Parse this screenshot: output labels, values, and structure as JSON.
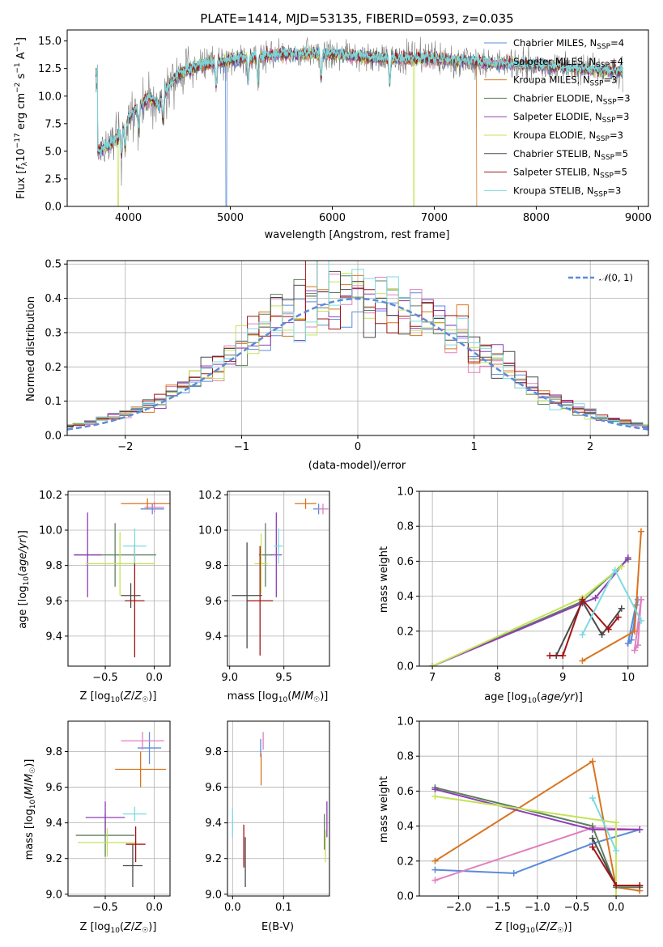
{
  "colors": {
    "Chabrier MILES": "#5b8bd9",
    "Salpeter MILES": "#e17fbf",
    "Kroupa MILES": "#d9741f",
    "Chabrier ELODIE": "#5e7f5e",
    "Salpeter ELODIE": "#8f3fb4",
    "Kroupa ELODIE": "#c4e35a",
    "Chabrier STELIB": "#4a4a4a",
    "Salpeter STELIB": "#a31414",
    "Kroupa STELIB": "#7cdbe0"
  },
  "chart_data": [
    {
      "type": "line",
      "title": "PLATE=1414, MJD=53135, FIBERID=0593, z=0.035",
      "xlabel": "wavelength [Angstrom, rest frame]",
      "ylabel": "Flux [f_λ 10^-17 erg cm^-2 s^-1 A^-1]",
      "xlim": [
        3400,
        9100
      ],
      "ylim": [
        0,
        16
      ],
      "xticks": [
        4000,
        5000,
        6000,
        7000,
        8000,
        9000
      ],
      "yticks": [
        0.0,
        2.5,
        5.0,
        7.5,
        10.0,
        12.5,
        15.0
      ],
      "legend_position": "top-right",
      "legend": [
        {
          "name": "Chabrier MILES",
          "suffix": "4"
        },
        {
          "name": "Salpeter MILES",
          "suffix": "4"
        },
        {
          "name": "Kroupa MILES",
          "suffix": "3"
        },
        {
          "name": "Chabrier ELODIE",
          "suffix": "3"
        },
        {
          "name": "Salpeter ELODIE",
          "suffix": "3"
        },
        {
          "name": "Kroupa ELODIE",
          "suffix": "3"
        },
        {
          "name": "Chabrier STELIB",
          "suffix": "5"
        },
        {
          "name": "Salpeter STELIB",
          "suffix": "5"
        },
        {
          "name": "Kroupa STELIB",
          "suffix": "3"
        }
      ],
      "spectrum_envelope": {
        "x": [
          3700,
          3800,
          3900,
          4000,
          4100,
          4200,
          4300,
          4400,
          4500,
          4700,
          5000,
          5500,
          6000,
          6500,
          7000,
          7500,
          8000,
          8500,
          8850
        ],
        "y": [
          5.0,
          5.5,
          6.3,
          8.0,
          9.0,
          9.8,
          9.2,
          11.0,
          12.0,
          12.8,
          13.2,
          13.8,
          13.8,
          13.4,
          13.4,
          13.0,
          12.8,
          12.4,
          12.2
        ]
      },
      "drops_to_zero": [
        {
          "series": "Chabrier MILES",
          "x": 4960
        },
        {
          "series": "Kroupa ELODIE",
          "x": 3900
        },
        {
          "series": "Kroupa ELODIE",
          "x": 6800
        },
        {
          "series": "Kroupa MILES",
          "x": 7420
        }
      ]
    },
    {
      "type": "histogram",
      "xlabel": "(data-model)/error",
      "ylabel": "Normed distribution",
      "xlim": [
        -2.5,
        2.5
      ],
      "ylim": [
        0,
        0.51
      ],
      "xticks": [
        -2,
        -1,
        0,
        1,
        2
      ],
      "yticks": [
        0.0,
        0.1,
        0.2,
        0.3,
        0.4,
        0.5
      ],
      "legend_position": "top-right",
      "reference_curve": {
        "label": "N(0,1)",
        "style": "dashed",
        "color": "#5b8bd9"
      },
      "bin_width": 0.1
    },
    {
      "type": "scatter",
      "variant": "error-cross",
      "xlabel": "Z [log10(Z/Z☉)]",
      "ylabel": "age [log10(age/yr)]",
      "xlim": [
        -0.88,
        0.16
      ],
      "ylim": [
        9.23,
        10.22
      ],
      "xticks": [
        -0.5,
        0.0
      ],
      "yticks": [
        9.4,
        9.6,
        9.8,
        10.0,
        10.2
      ],
      "points": [
        {
          "series": "Chabrier MILES",
          "x": -0.02,
          "y": 10.12,
          "xerr": 0.12,
          "yerr": 0.03
        },
        {
          "series": "Salpeter MILES",
          "x": 0.0,
          "y": 10.13,
          "xerr": 0.1,
          "yerr": 0.03
        },
        {
          "series": "Kroupa MILES",
          "x": -0.07,
          "y": 10.15,
          "xerr": 0.27,
          "yerr": 0.03
        },
        {
          "series": "Chabrier ELODIE",
          "x": -0.4,
          "y": 9.86,
          "xerr": 0.42,
          "yerr": 0.18
        },
        {
          "series": "Salpeter ELODIE",
          "x": -0.68,
          "y": 9.86,
          "xerr": 0.14,
          "yerr": 0.24
        },
        {
          "series": "Kroupa ELODIE",
          "x": -0.35,
          "y": 9.81,
          "xerr": 0.35,
          "yerr": 0.18
        },
        {
          "series": "Chabrier STELIB",
          "x": -0.24,
          "y": 9.63,
          "xerr": 0.1,
          "yerr": 0.07
        },
        {
          "series": "Salpeter STELIB",
          "x": -0.2,
          "y": 9.6,
          "xerr": 0.1,
          "yerr": 0.32
        },
        {
          "series": "Kroupa STELIB",
          "x": -0.2,
          "y": 9.91,
          "xerr": 0.12,
          "yerr": 0.1
        }
      ]
    },
    {
      "type": "scatter",
      "variant": "error-cross",
      "xlabel": "mass [log10(M/M☉)]",
      "ylabel": "",
      "xlim": [
        8.98,
        9.92
      ],
      "ylim": [
        9.23,
        10.22
      ],
      "xticks": [
        9.0,
        9.5
      ],
      "yticks": [
        9.4,
        9.6,
        9.8,
        10.0,
        10.2
      ],
      "points": [
        {
          "series": "Chabrier MILES",
          "x": 9.82,
          "y": 10.12,
          "xerr": 0.05,
          "yerr": 0.03
        },
        {
          "series": "Salpeter MILES",
          "x": 9.86,
          "y": 10.12,
          "xerr": 0.05,
          "yerr": 0.03
        },
        {
          "series": "Kroupa MILES",
          "x": 9.7,
          "y": 10.15,
          "xerr": 0.1,
          "yerr": 0.03
        },
        {
          "series": "Chabrier ELODIE",
          "x": 9.33,
          "y": 9.86,
          "xerr": 0.06,
          "yerr": 0.18
        },
        {
          "series": "Salpeter ELODIE",
          "x": 9.43,
          "y": 9.86,
          "xerr": 0.05,
          "yerr": 0.24
        },
        {
          "series": "Kroupa ELODIE",
          "x": 9.29,
          "y": 9.81,
          "xerr": 0.06,
          "yerr": 0.17
        },
        {
          "series": "Chabrier STELIB",
          "x": 9.16,
          "y": 9.63,
          "xerr": 0.14,
          "yerr": 0.3
        },
        {
          "series": "Salpeter STELIB",
          "x": 9.28,
          "y": 9.6,
          "xerr": 0.12,
          "yerr": 0.31
        },
        {
          "series": "Kroupa STELIB",
          "x": 9.45,
          "y": 9.91,
          "xerr": 0.04,
          "yerr": 0.1
        }
      ]
    },
    {
      "type": "line",
      "xlabel": "age [log10(age/yr)]",
      "ylabel": "mass weight",
      "xlim": [
        6.8,
        10.3
      ],
      "ylim": [
        0,
        1
      ],
      "xticks": [
        7,
        8,
        9,
        10
      ],
      "yticks": [
        0.0,
        0.2,
        0.4,
        0.6,
        0.8,
        1.0
      ],
      "series": [
        {
          "name": "Chabrier MILES",
          "points": [
            [
              10.15,
              0.38
            ],
            [
              10.05,
              0.15
            ],
            [
              10.0,
              0.13
            ],
            [
              10.12,
              0.35
            ]
          ]
        },
        {
          "name": "Salpeter MILES",
          "points": [
            [
              10.2,
              0.38
            ],
            [
              10.1,
              0.09
            ],
            [
              10.15,
              0.12
            ],
            [
              10.2,
              0.38
            ]
          ]
        },
        {
          "name": "Kroupa MILES",
          "points": [
            [
              9.3,
              0.03
            ],
            [
              10.1,
              0.2
            ],
            [
              10.2,
              0.77
            ]
          ]
        },
        {
          "name": "Chabrier ELODIE",
          "points": [
            [
              7.0,
              0.0
            ],
            [
              9.3,
              0.37
            ],
            [
              10.0,
              0.61
            ]
          ]
        },
        {
          "name": "Salpeter ELODIE",
          "points": [
            [
              7.0,
              0.0
            ],
            [
              9.3,
              0.36
            ],
            [
              9.5,
              0.39
            ],
            [
              10.0,
              0.62
            ]
          ]
        },
        {
          "name": "Kroupa ELODIE",
          "points": [
            [
              7.0,
              0.0
            ],
            [
              9.3,
              0.39
            ],
            [
              9.9,
              0.57
            ]
          ]
        },
        {
          "name": "Chabrier STELIB",
          "points": [
            [
              8.9,
              0.06
            ],
            [
              9.3,
              0.37
            ],
            [
              9.6,
              0.18
            ],
            [
              9.9,
              0.33
            ]
          ]
        },
        {
          "name": "Salpeter STELIB",
          "points": [
            [
              8.8,
              0.06
            ],
            [
              9.0,
              0.06
            ],
            [
              9.3,
              0.38
            ],
            [
              9.7,
              0.21
            ],
            [
              9.85,
              0.28
            ]
          ]
        },
        {
          "name": "Kroupa STELIB",
          "points": [
            [
              9.3,
              0.18
            ],
            [
              9.8,
              0.55
            ],
            [
              10.2,
              0.26
            ]
          ]
        }
      ]
    },
    {
      "type": "scatter",
      "variant": "error-cross",
      "xlabel": "Z [log10(Z/Z☉)]",
      "ylabel": "mass [log10(M/M☉)]",
      "xlim": [
        -0.88,
        0.16
      ],
      "ylim": [
        8.99,
        9.97
      ],
      "xticks": [
        -0.5,
        0.0
      ],
      "yticks": [
        9.0,
        9.2,
        9.4,
        9.6,
        9.8
      ],
      "points": [
        {
          "series": "Chabrier MILES",
          "x": -0.05,
          "y": 9.82,
          "xerr": 0.12,
          "yerr": 0.09
        },
        {
          "series": "Salpeter MILES",
          "x": -0.12,
          "y": 9.86,
          "xerr": 0.22,
          "yerr": 0.05
        },
        {
          "series": "Kroupa MILES",
          "x": -0.14,
          "y": 9.7,
          "xerr": 0.26,
          "yerr": 0.1
        },
        {
          "series": "Chabrier ELODIE",
          "x": -0.5,
          "y": 9.33,
          "xerr": 0.3,
          "yerr": 0.12
        },
        {
          "series": "Salpeter ELODIE",
          "x": -0.5,
          "y": 9.43,
          "xerr": 0.2,
          "yerr": 0.09
        },
        {
          "series": "Kroupa ELODIE",
          "x": -0.48,
          "y": 9.29,
          "xerr": 0.3,
          "yerr": 0.08
        },
        {
          "series": "Chabrier STELIB",
          "x": -0.22,
          "y": 9.16,
          "xerr": 0.1,
          "yerr": 0.12
        },
        {
          "series": "Salpeter STELIB",
          "x": -0.19,
          "y": 9.28,
          "xerr": 0.1,
          "yerr": 0.1
        },
        {
          "series": "Kroupa STELIB",
          "x": -0.2,
          "y": 9.45,
          "xerr": 0.12,
          "yerr": 0.04
        }
      ]
    },
    {
      "type": "scatter",
      "variant": "error-cross",
      "xlabel": "E(B-V)",
      "ylabel": "",
      "xlim": [
        -0.01,
        0.19
      ],
      "ylim": [
        8.99,
        9.97
      ],
      "xticks": [
        0.0,
        0.1
      ],
      "yticks": [
        9.0,
        9.2,
        9.4,
        9.6,
        9.8
      ],
      "points": [
        {
          "series": "Chabrier MILES",
          "x": 0.055,
          "y": 9.82,
          "xerr": 0.0,
          "yerr": 0.05
        },
        {
          "series": "Salpeter MILES",
          "x": 0.06,
          "y": 9.86,
          "xerr": 0.0,
          "yerr": 0.05
        },
        {
          "series": "Kroupa MILES",
          "x": 0.056,
          "y": 9.7,
          "xerr": 0.0,
          "yerr": 0.09
        },
        {
          "series": "Chabrier ELODIE",
          "x": 0.18,
          "y": 9.35,
          "xerr": 0.0,
          "yerr": 0.1
        },
        {
          "series": "Salpeter ELODIE",
          "x": 0.185,
          "y": 9.42,
          "xerr": 0.0,
          "yerr": 0.1
        },
        {
          "series": "Kroupa ELODIE",
          "x": 0.182,
          "y": 9.27,
          "xerr": 0.0,
          "yerr": 0.09
        },
        {
          "series": "Chabrier STELIB",
          "x": 0.025,
          "y": 9.18,
          "xerr": 0.0,
          "yerr": 0.14
        },
        {
          "series": "Salpeter STELIB",
          "x": 0.022,
          "y": 9.27,
          "xerr": 0.0,
          "yerr": 0.12
        },
        {
          "series": "Kroupa STELIB",
          "x": 0.0,
          "y": 9.4,
          "xerr": 0.0,
          "yerr": 0.08
        }
      ]
    },
    {
      "type": "line",
      "xlabel": "Z [log10(Z/Z☉)]",
      "ylabel": "mass weight",
      "xlim": [
        -2.5,
        0.4
      ],
      "ylim": [
        0,
        1
      ],
      "xticks": [
        -2.0,
        -1.5,
        -1.0,
        -0.5,
        0.0
      ],
      "yticks": [
        0.0,
        0.2,
        0.4,
        0.6,
        0.8,
        1.0
      ],
      "series": [
        {
          "name": "Chabrier MILES",
          "points": [
            [
              -2.3,
              0.15
            ],
            [
              -1.3,
              0.13
            ],
            [
              -0.3,
              0.3
            ],
            [
              0.3,
              0.38
            ]
          ]
        },
        {
          "name": "Salpeter MILES",
          "points": [
            [
              -2.3,
              0.09
            ],
            [
              -0.3,
              0.39
            ],
            [
              0.3,
              0.38
            ]
          ]
        },
        {
          "name": "Kroupa MILES",
          "points": [
            [
              -2.3,
              0.2
            ],
            [
              -0.3,
              0.77
            ],
            [
              0.0,
              0.05
            ],
            [
              0.3,
              0.03
            ]
          ]
        },
        {
          "name": "Chabrier ELODIE",
          "points": [
            [
              -2.3,
              0.62
            ],
            [
              -0.3,
              0.4
            ],
            [
              0.0,
              0.05
            ],
            [
              0.3,
              0.05
            ]
          ]
        },
        {
          "name": "Salpeter ELODIE",
          "points": [
            [
              -2.3,
              0.61
            ],
            [
              -0.3,
              0.38
            ],
            [
              0.3,
              0.38
            ]
          ]
        },
        {
          "name": "Kroupa ELODIE",
          "points": [
            [
              -2.3,
              0.57
            ],
            [
              0.0,
              0.42
            ],
            [
              0.0,
              0.0
            ]
          ]
        },
        {
          "name": "Chabrier STELIB",
          "points": [
            [
              -0.3,
              0.33
            ],
            [
              0.0,
              0.06
            ],
            [
              0.3,
              0.06
            ]
          ]
        },
        {
          "name": "Salpeter STELIB",
          "points": [
            [
              -0.3,
              0.28
            ],
            [
              0.0,
              0.06
            ],
            [
              0.3,
              0.06
            ]
          ]
        },
        {
          "name": "Kroupa STELIB",
          "points": [
            [
              -0.3,
              0.56
            ],
            [
              0.0,
              0.26
            ]
          ]
        }
      ]
    }
  ]
}
